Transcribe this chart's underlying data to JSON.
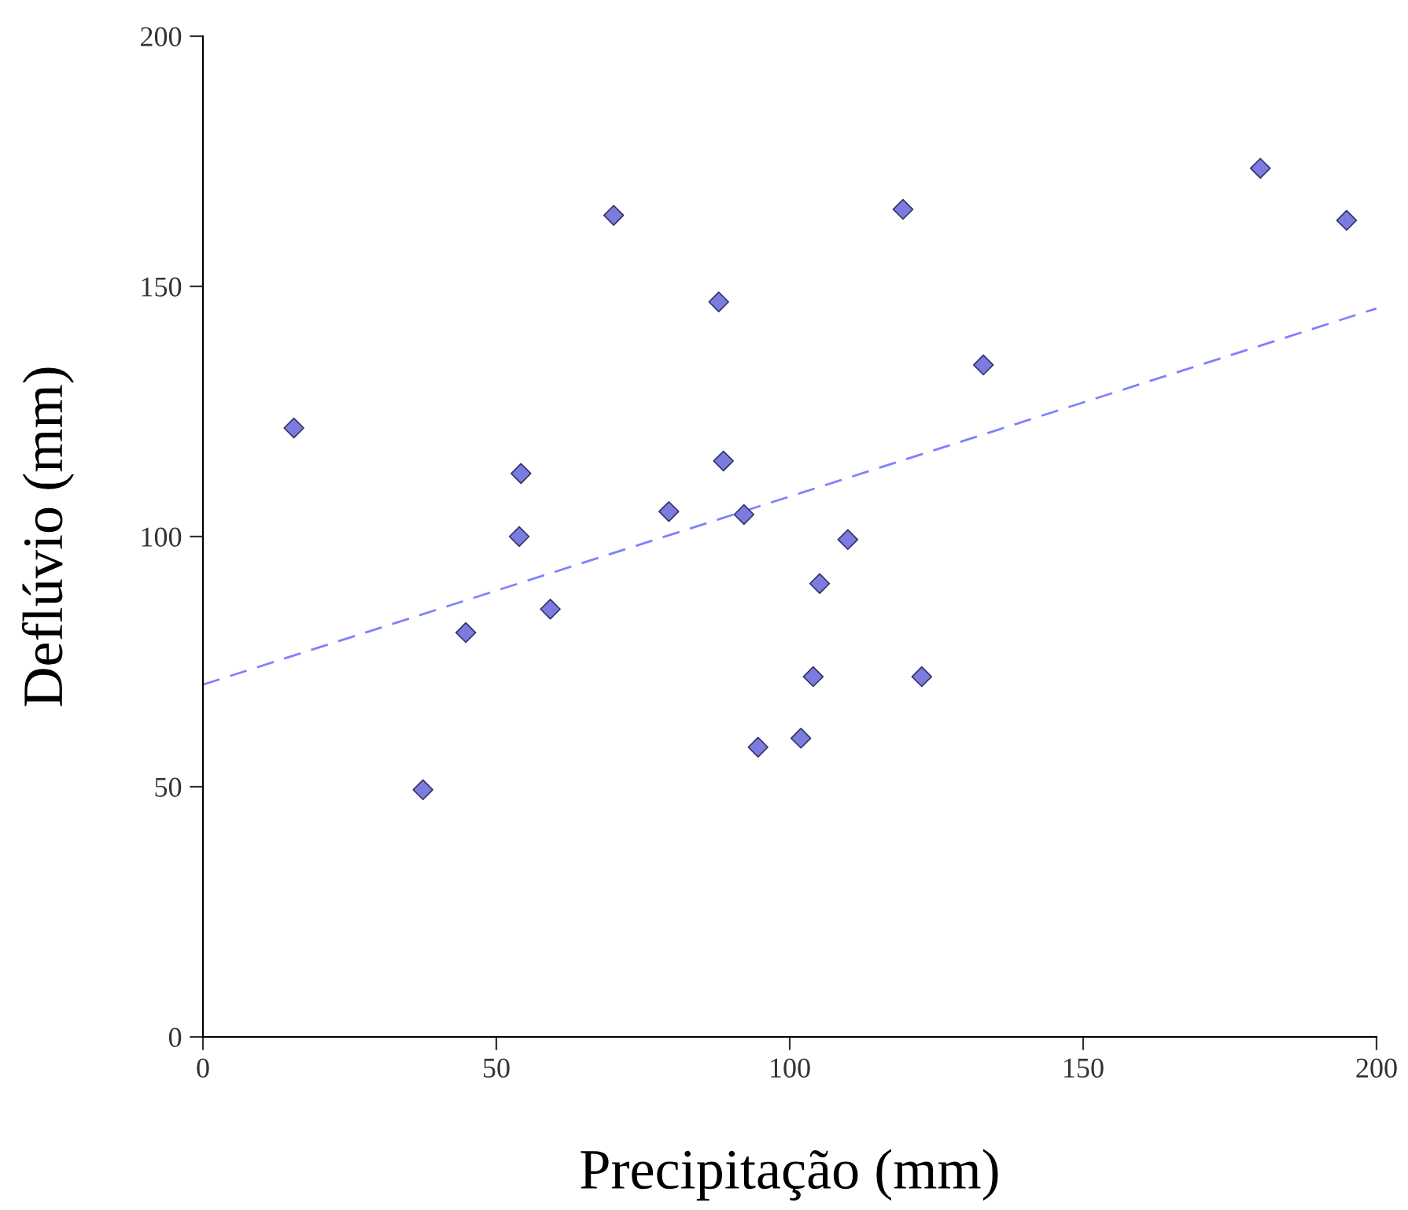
{
  "chart_data": {
    "type": "scatter",
    "xlabel": "Precipitação (mm)",
    "ylabel": "Deflúvio (mm)",
    "xlim": [
      0,
      200
    ],
    "ylim": [
      0,
      200
    ],
    "xticks": [
      0,
      50,
      100,
      150,
      200
    ],
    "yticks": [
      0,
      50,
      100,
      150,
      200
    ],
    "grid": false,
    "legend": false,
    "marker": "diamond",
    "series": [
      {
        "color": "#7b7be0",
        "x": [
          15.5,
          37.5,
          44.8,
          54.2,
          53.9,
          59.2,
          70,
          79.4,
          87.9,
          88.7,
          92.2,
          94.6,
          101.9,
          104,
          105.1,
          109.9,
          119.3,
          122.5,
          133,
          180.2,
          194.9
        ],
        "values": [
          121.7,
          49.4,
          80.8,
          112.6,
          100,
          85.5,
          164.2,
          105,
          146.9,
          115.1,
          104.4,
          57.9,
          59.7,
          72,
          90.6,
          99.4,
          165.4,
          72,
          134.3,
          173.6,
          163.2
        ]
      },
      {
        "type": "line",
        "color": "#8080ff",
        "line_style": "dashed",
        "marker": "none",
        "x": [
          0,
          200
        ],
        "values": [
          70.4,
          145.6
        ]
      }
    ]
  }
}
